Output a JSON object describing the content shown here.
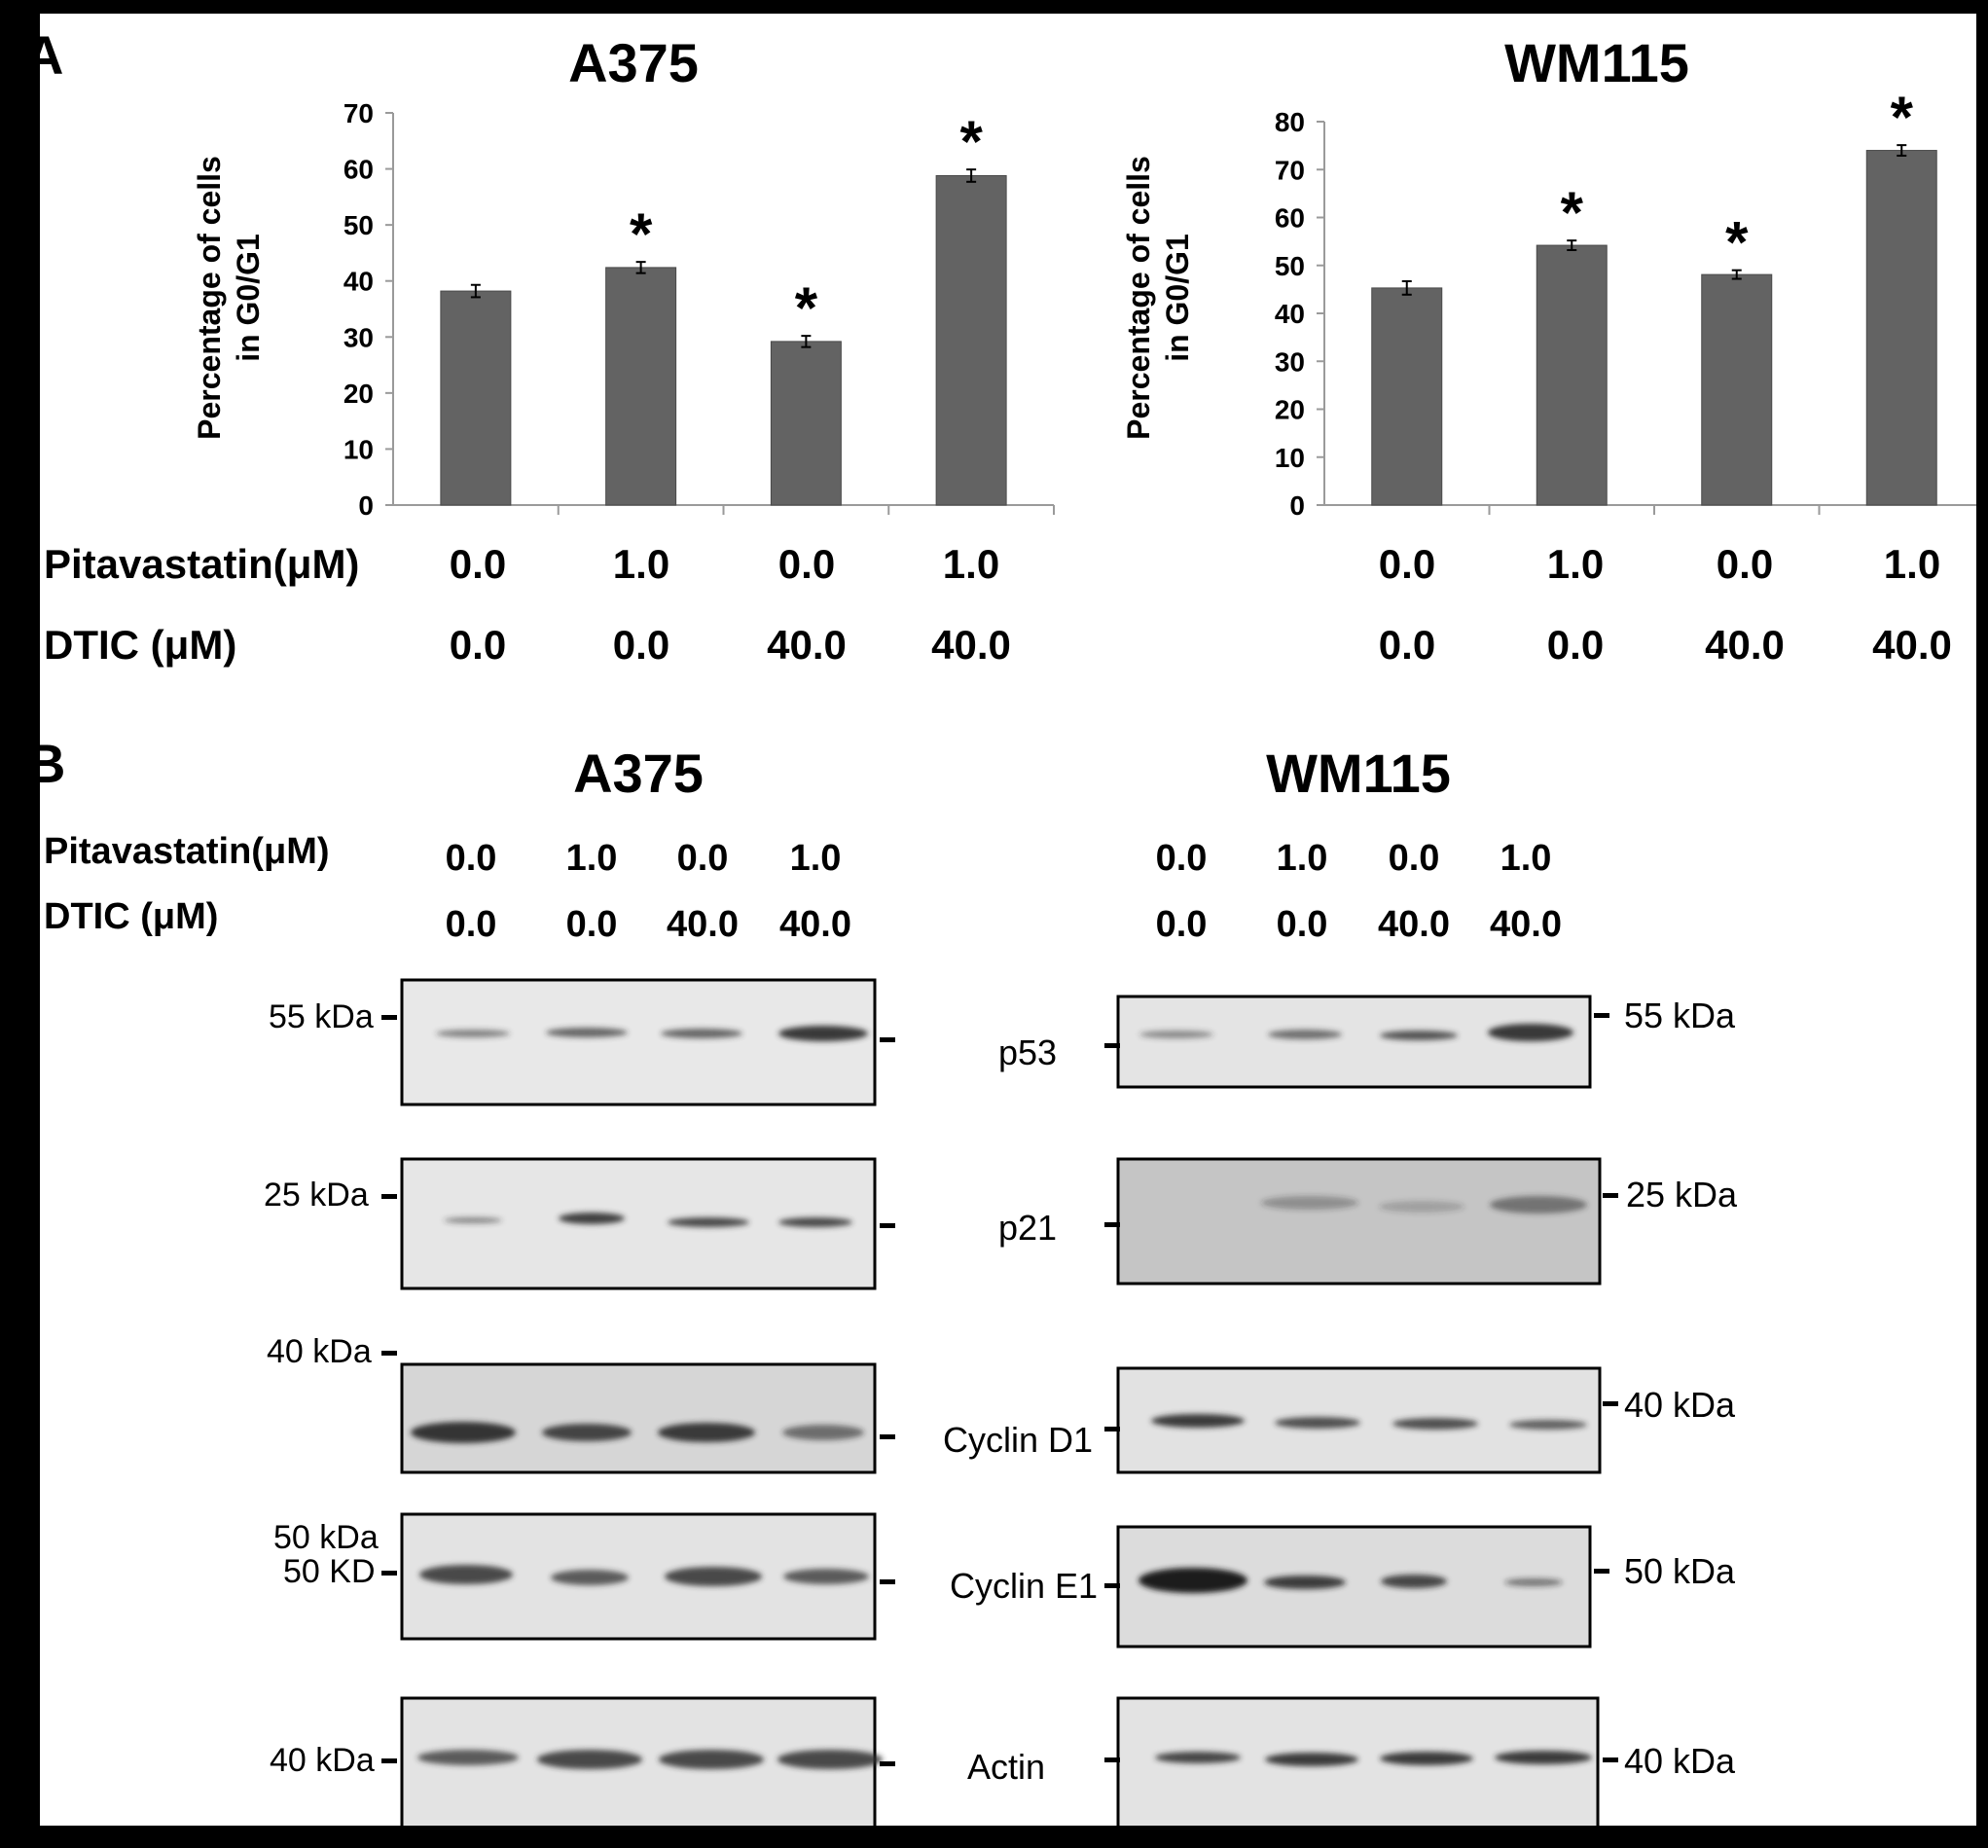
{
  "panel_labels": {
    "a": "A",
    "b": "B"
  },
  "chart_data": [
    {
      "type": "bar",
      "title": "A375",
      "ylabel_line1": "Percentage of cells",
      "ylabel_line2": "in G0/G1",
      "ylim": [
        0,
        70
      ],
      "yticks": [
        0,
        10,
        20,
        30,
        40,
        50,
        60,
        70
      ],
      "categories": [
        "0.0 / 0.0",
        "1.0 / 0.0",
        "0.0 / 40.0",
        "1.0 / 40.0"
      ],
      "values": [
        38.2,
        42.4,
        29.2,
        58.8
      ],
      "errors": [
        1.1,
        1.0,
        1.0,
        1.1
      ],
      "significance": [
        "",
        "*",
        "*",
        "*"
      ],
      "bar_color": "#636363",
      "condition_rows": [
        {
          "label": "Pitavastatin(μM)",
          "values": [
            "0.0",
            "1.0",
            "0.0",
            "1.0"
          ]
        },
        {
          "label": "DTIC (μM)",
          "values": [
            "0.0",
            "0.0",
            "40.0",
            "40.0"
          ]
        }
      ]
    },
    {
      "type": "bar",
      "title": "WM115",
      "ylabel_line1": "Percentage of cells",
      "ylabel_line2": "in G0/G1",
      "ylim": [
        0,
        80
      ],
      "yticks": [
        0,
        10,
        20,
        30,
        40,
        50,
        60,
        70,
        80
      ],
      "categories": [
        "0.0 / 0.0",
        "1.0 / 0.0",
        "0.0 / 40.0",
        "1.0 / 40.0"
      ],
      "values": [
        45.3,
        54.2,
        48.1,
        74.0
      ],
      "errors": [
        1.4,
        1.0,
        0.9,
        1.1
      ],
      "significance": [
        "",
        "*",
        "*",
        "*"
      ],
      "bar_color": "#636363",
      "condition_rows": [
        {
          "label": "",
          "values": [
            "0.0",
            "1.0",
            "0.0",
            "1.0"
          ]
        },
        {
          "label": "",
          "values": [
            "0.0",
            "0.0",
            "40.0",
            "40.0"
          ]
        }
      ]
    }
  ],
  "blots": {
    "a375": {
      "title": "A375",
      "conditions": [
        {
          "label": "Pitavastatin(μM)",
          "values": [
            "0.0",
            "1.0",
            "0.0",
            "1.0"
          ]
        },
        {
          "label": "DTIC (μM)",
          "values": [
            "0.0",
            "0.0",
            "40.0",
            "40.0"
          ]
        }
      ],
      "markers": [
        "55 kDa",
        "25 kDa",
        "40 kDa",
        "50 kDa",
        "50 KD",
        "40 kDa"
      ]
    },
    "wm115": {
      "title": "WM115",
      "conditions": [
        {
          "values": [
            "0.0",
            "1.0",
            "0.0",
            "1.0"
          ]
        },
        {
          "values": [
            "0.0",
            "0.0",
            "40.0",
            "40.0"
          ]
        }
      ],
      "markers": [
        "55 kDa",
        "25 kDa",
        "40 kDa",
        "50 kDa",
        "40 kDa"
      ]
    },
    "proteins": [
      "p53",
      "p21",
      "Cyclin D1",
      "Cyclin E1",
      "Actin"
    ]
  }
}
